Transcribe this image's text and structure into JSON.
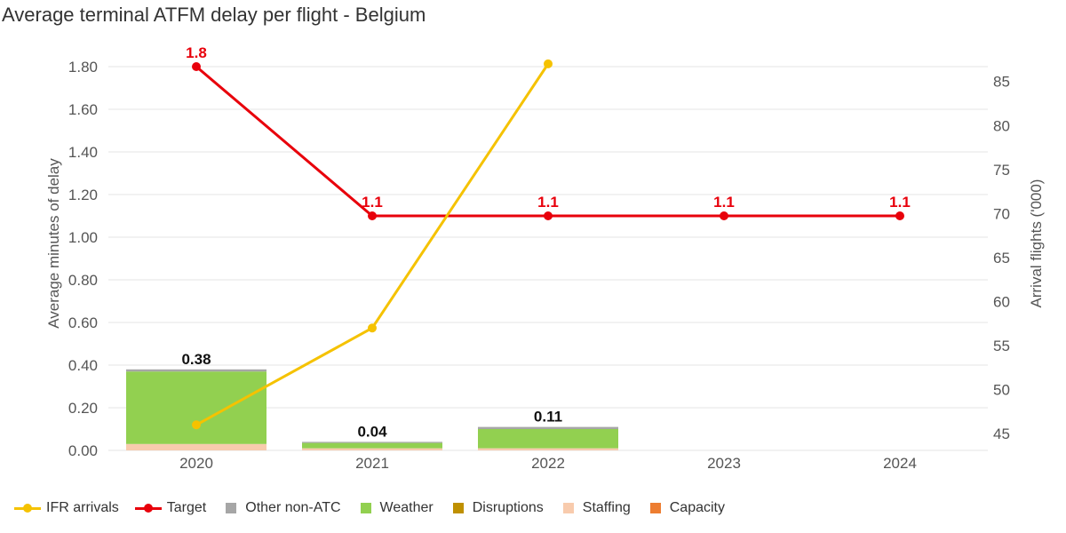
{
  "colors": {
    "ifr": "#f5c200",
    "target": "#e8000b",
    "other": "#a6a6a6",
    "weather": "#92d050",
    "disruptions": "#bf9000",
    "staffing": "#f8cbad",
    "capacity": "#ed7d31",
    "grid": "#e6e6e6"
  },
  "chart_data": {
    "type": "bar",
    "title": "Average terminal ATFM delay per flight - Belgium",
    "categories": [
      "2020",
      "2021",
      "2022",
      "2023",
      "2024"
    ],
    "ylabel": "Average minutes of delay",
    "y2label": "Arrival flights ('000)",
    "ylim": [
      0,
      1.8
    ],
    "yticks": [
      "0.00",
      "0.20",
      "0.40",
      "0.60",
      "0.80",
      "1.00",
      "1.20",
      "1.40",
      "1.60",
      "1.80"
    ],
    "y2lim": [
      43.1,
      88.2
    ],
    "y2ticks": [
      "45",
      "50",
      "55",
      "60",
      "65",
      "70",
      "75",
      "80",
      "85"
    ],
    "stacked_series": [
      {
        "name": "Capacity",
        "color_key": "capacity",
        "values": [
          0,
          0,
          0,
          null,
          null
        ]
      },
      {
        "name": "Staffing",
        "color_key": "staffing",
        "values": [
          0.03,
          0.01,
          0.01,
          null,
          null
        ]
      },
      {
        "name": "Disruptions",
        "color_key": "disruptions",
        "values": [
          0,
          0,
          0,
          null,
          null
        ]
      },
      {
        "name": "Weather",
        "color_key": "weather",
        "values": [
          0.34,
          0.025,
          0.09,
          null,
          null
        ]
      },
      {
        "name": "Other non-ATC",
        "color_key": "other",
        "values": [
          0.01,
          0.005,
          0.01,
          null,
          null
        ]
      }
    ],
    "bar_totals": [
      "0.38",
      "0.04",
      "0.11",
      "",
      ""
    ],
    "target": {
      "name": "Target",
      "values": [
        1.8,
        1.1,
        1.1,
        1.1,
        1.1
      ],
      "labels": [
        "1.8",
        "1.1",
        "1.1",
        "1.1",
        "1.1"
      ]
    },
    "ifr_arrivals": {
      "name": "IFR arrivals",
      "values": [
        46,
        57,
        87,
        null,
        null
      ]
    },
    "legend": [
      "IFR arrivals",
      "Target",
      "Other non-ATC",
      "Weather",
      "Disruptions",
      "Staffing",
      "Capacity"
    ],
    "legend_position": "bottom-left",
    "grid": true
  }
}
